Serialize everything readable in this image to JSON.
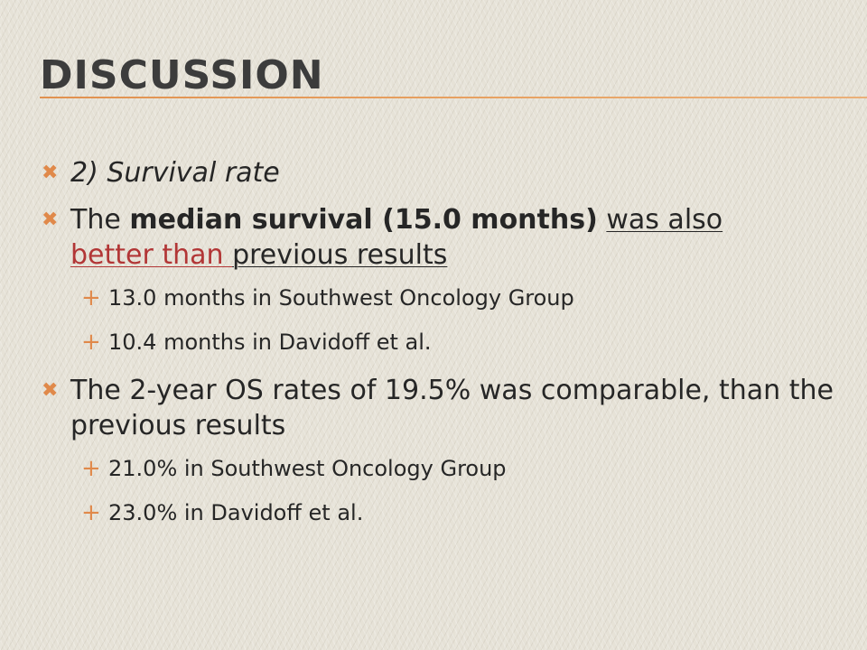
{
  "slide": {
    "title": "Discussion",
    "accent_color": "#e0894a",
    "bullets": [
      {
        "text": "2) Survival rate"
      },
      {
        "t1": "The ",
        "t2": "median survival (15.0 months)",
        "t3": " ",
        "t4": "was also",
        "t5": "better than ",
        "t6": "previous results"
      },
      {
        "text": "13.0 months in Southwest Oncology Group"
      },
      {
        "text": "10.4 months in Davidoff et al."
      },
      {
        "text": "The 2-year OS rates of 19.5% was comparable, than the previous results"
      },
      {
        "text": "21.0% in Southwest Oncology Group"
      },
      {
        "text": "23.0% in Davidoff et al."
      }
    ],
    "bullet_glyphs": {
      "level1": "✖",
      "level2": "+"
    }
  }
}
